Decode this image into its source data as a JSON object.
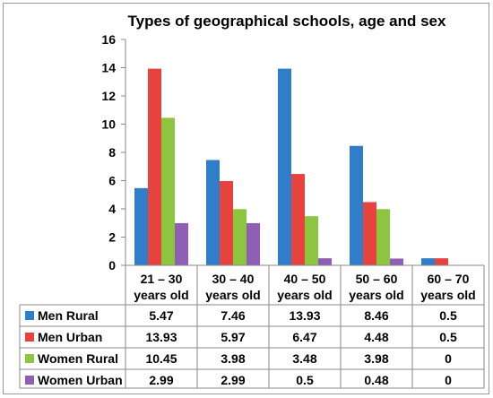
{
  "chart_data": {
    "type": "bar",
    "title": "Types of geographical schools, age and sex",
    "categories": [
      [
        "21 – 30",
        "years old"
      ],
      [
        "30 – 40",
        "years old"
      ],
      [
        "40 – 50",
        "years old"
      ],
      [
        "50 – 60",
        "years old"
      ],
      [
        "60 – 70",
        "years old"
      ]
    ],
    "series": [
      {
        "name": "Men Rural",
        "color": "#2e7ec9",
        "values": [
          5.47,
          7.46,
          13.93,
          8.46,
          0.5
        ],
        "labels": [
          "5.47",
          "7.46",
          "13.93",
          "8.46",
          "0.5"
        ]
      },
      {
        "name": "Men Urban",
        "color": "#e8423f",
        "values": [
          13.93,
          5.97,
          6.47,
          4.48,
          0.5
        ],
        "labels": [
          "13.93",
          "5.97",
          "6.47",
          "4.48",
          "0.5"
        ]
      },
      {
        "name": "Women Rural",
        "color": "#8cc63f",
        "values": [
          10.45,
          3.98,
          3.48,
          3.98,
          0
        ],
        "labels": [
          "10.45",
          "3.98",
          "3.48",
          "3.98",
          "0"
        ]
      },
      {
        "name": "Women Urban",
        "color": "#8e5fb5",
        "values": [
          2.99,
          2.99,
          0.5,
          0.48,
          0
        ],
        "labels": [
          "2.99",
          "2.99",
          "0.5",
          "0.48",
          "0"
        ]
      }
    ],
    "ylim": [
      0,
      16
    ],
    "yticks": [
      "0",
      "2",
      "4",
      "6",
      "8",
      "10",
      "12",
      "14",
      "16"
    ],
    "grid": false,
    "legend": "data-table"
  }
}
